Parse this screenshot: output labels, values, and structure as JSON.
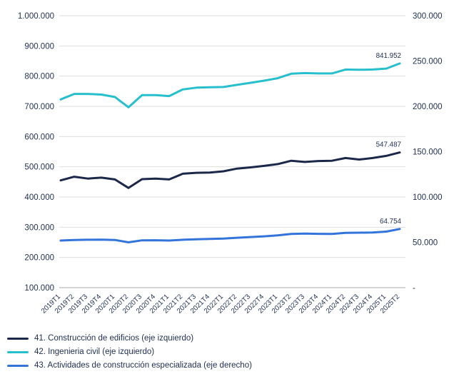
{
  "chart_data": {
    "type": "line",
    "x": [
      "2019T1",
      "2019T2",
      "2019T3",
      "2019T4",
      "2020T1",
      "2020T2",
      "2020T3",
      "2020T4",
      "2021T1",
      "2021T2",
      "2021T3",
      "2021T4",
      "2022T1",
      "2022T2",
      "2022T3",
      "2022T4",
      "2023T1",
      "2023T2",
      "2023T3",
      "2023T4",
      "2024T1",
      "2024T2",
      "2024T3",
      "2024T4",
      "2025T1",
      "2025T2"
    ],
    "series": [
      {
        "name": "41. Construcción de edificios (eje izquierdo)",
        "axis": "left",
        "color": "#1c2849",
        "end_label": "547.487",
        "values": [
          455000,
          467000,
          461000,
          464000,
          458000,
          430000,
          459000,
          461000,
          458000,
          477000,
          480000,
          481000,
          485000,
          494000,
          498000,
          503000,
          509000,
          520000,
          516000,
          519000,
          520000,
          529000,
          524000,
          529000,
          536000,
          547487
        ]
      },
      {
        "name": "42. Ingenieria civil (eje izquierdo)",
        "axis": "left",
        "color": "#27bfcd",
        "end_label": "841.952",
        "values": [
          723000,
          741000,
          741000,
          739000,
          731000,
          697000,
          737000,
          737000,
          734000,
          756000,
          762000,
          763000,
          764000,
          771000,
          778000,
          785000,
          793000,
          808000,
          810000,
          809000,
          809000,
          822000,
          821000,
          822000,
          825000,
          841952
        ]
      },
      {
        "name": "43. Actividades de construcción especializada (eje derecho)",
        "axis": "right",
        "color": "#3274d9",
        "end_label": "64.754",
        "values": [
          52000,
          52600,
          52800,
          53000,
          52600,
          50000,
          52200,
          52300,
          52000,
          52800,
          53400,
          53800,
          54200,
          55000,
          55800,
          56600,
          57600,
          59200,
          59600,
          59400,
          59200,
          60400,
          60600,
          60800,
          61800,
          64754
        ]
      }
    ],
    "left_axis": {
      "min": 100000,
      "max": 1000000,
      "tick_step": 100000,
      "tick_labels": [
        "1.000.000",
        "900.000",
        "800.000",
        "700.000",
        "600.000",
        "500.000",
        "400.000",
        "300.000",
        "200.000",
        "100.000"
      ]
    },
    "right_axis": {
      "min": 0,
      "max": 300000,
      "tick_step": 50000,
      "tick_labels": [
        "300.000",
        "250.000",
        "200.000",
        "150.000",
        "100.000",
        "50.000",
        "-"
      ]
    },
    "grid": true,
    "legend_position": "bottom",
    "title": "",
    "xlabel": "",
    "ylabel": ""
  },
  "legend": {
    "items": [
      {
        "label": "41. Construcción de edificios (eje izquierdo)",
        "color": "#1c2849"
      },
      {
        "label": "42. Ingenieria civil (eje izquierdo)",
        "color": "#27bfcd"
      },
      {
        "label": "43. Actividades de construcción especializada (eje derecho)",
        "color": "#3274d9"
      }
    ]
  },
  "colors": {
    "tick_text": "#1f2d50",
    "gridline": "#dedede",
    "baseline": "#c6c6c6"
  }
}
